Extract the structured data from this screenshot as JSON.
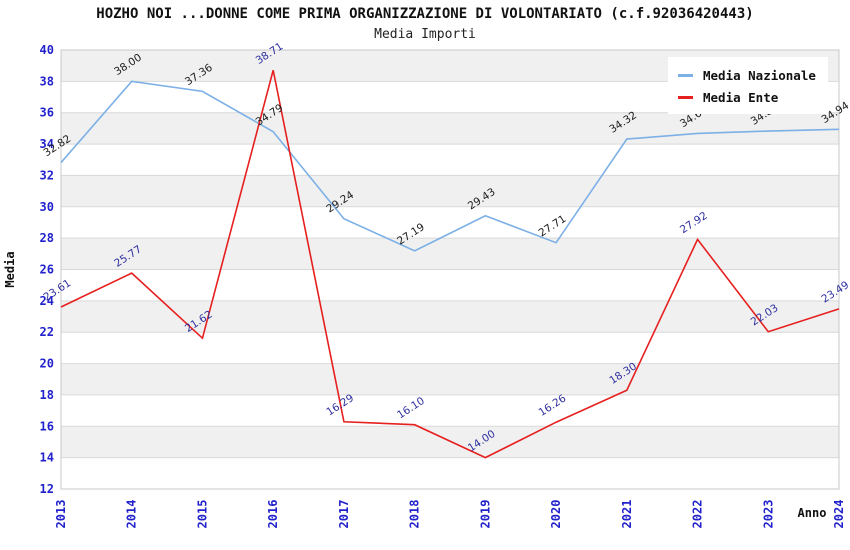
{
  "header": {
    "title": "HOZHO NOI ...DONNE COME PRIMA ORGANIZZAZIONE DI VOLONTARIATO (c.f.92036420443)",
    "subtitle": "Media Importi"
  },
  "chart_data": {
    "type": "line",
    "title": "HOZHO NOI ...DONNE COME PRIMA ORGANIZZAZIONE DI VOLONTARIATO (c.f.92036420443)",
    "subtitle": "Media Importi",
    "xlabel": "Anno",
    "ylabel": "Media",
    "x": [
      "2013",
      "2014",
      "2015",
      "2016",
      "2017",
      "2018",
      "2019",
      "2020",
      "2021",
      "2022",
      "2023",
      "2024"
    ],
    "ylim": [
      12,
      40
    ],
    "ytick_step": 2,
    "grid": "horizontal-bands-on",
    "legend_position": "top-right",
    "band_fill": "#f0f0f0",
    "grid_color": "#d9d9d9",
    "border_color": "#c8c8c8",
    "axis_tick_color": "#2222cc",
    "series": [
      {
        "name": "Media Nazionale",
        "color": "#7cb0e6",
        "label_color": "#1c1c1c",
        "values": [
          32.82,
          38.0,
          37.36,
          34.79,
          29.24,
          27.19,
          29.43,
          27.71,
          34.32,
          34.68,
          34.83,
          34.94
        ]
      },
      {
        "name": "Media Ente",
        "color": "#e61f1f",
        "label_color": "#3030a0",
        "values": [
          23.61,
          25.77,
          21.62,
          38.71,
          16.29,
          16.1,
          14.0,
          16.26,
          18.3,
          27.92,
          22.03,
          23.49
        ]
      }
    ]
  }
}
